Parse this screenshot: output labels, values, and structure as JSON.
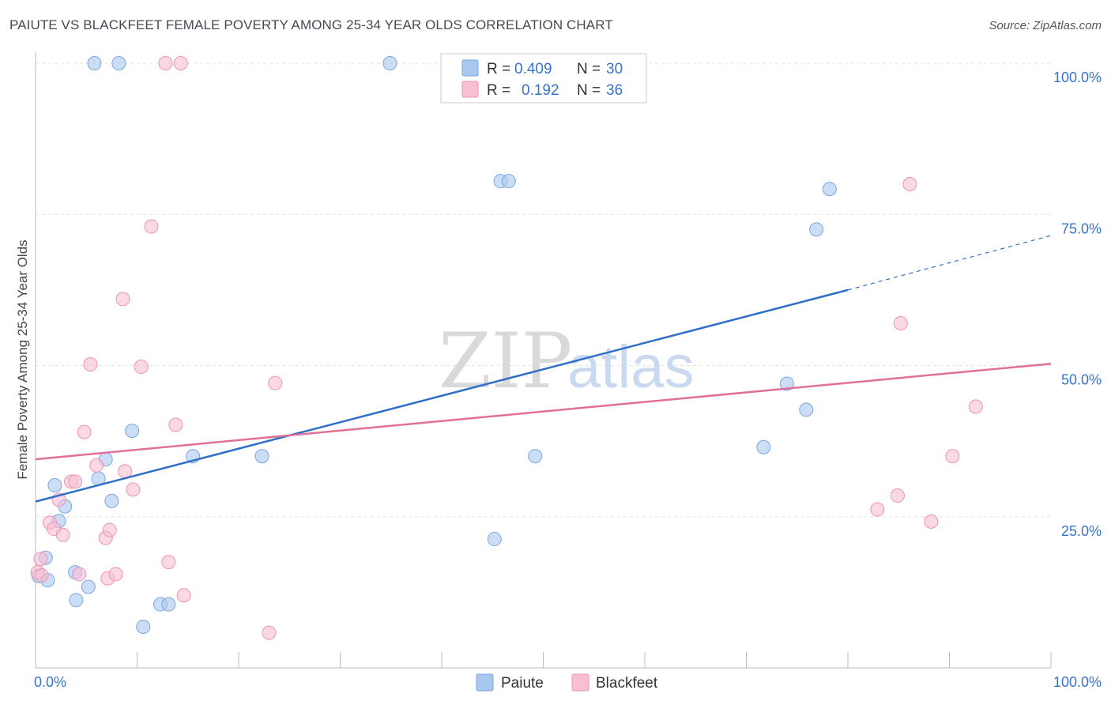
{
  "header": {
    "title": "PAIUTE VS BLACKFEET FEMALE POVERTY AMONG 25-34 YEAR OLDS CORRELATION CHART",
    "source": "Source: ZipAtlas.com"
  },
  "watermark": {
    "zip": "ZIP",
    "atlas": "atlas"
  },
  "legend": {
    "rows": [
      {
        "r_label": "R = ",
        "r_value": "0.409",
        "n_label": "N = ",
        "n_value": "30"
      },
      {
        "r_label": "R = ",
        "r_value": "0.192",
        "n_label": "N = ",
        "n_value": "36"
      }
    ]
  },
  "chart_data": {
    "type": "scatter",
    "title": "PAIUTE VS BLACKFEET FEMALE POVERTY AMONG 25-34 YEAR OLDS CORRELATION CHART",
    "xlabel": "",
    "ylabel": "Female Poverty Among 25-34 Year Olds",
    "xlim": [
      0,
      100
    ],
    "ylim": [
      0,
      100
    ],
    "x_tick_labels": [
      "0.0%",
      "100.0%"
    ],
    "y_ticks": [
      {
        "value": 100,
        "label": "100.0%"
      },
      {
        "value": 75,
        "label": "75.0%"
      },
      {
        "value": 50,
        "label": "50.0%"
      },
      {
        "value": 25,
        "label": "25.0%"
      }
    ],
    "grid": true,
    "legend_position": "top-center",
    "series": [
      {
        "name": "Paiute",
        "color": "#a8c8f0",
        "stroke": "#7aa6df",
        "line_color": "#2f6fc8",
        "trend": {
          "x0": 0,
          "y0": 27.5,
          "x1": 80,
          "y1": 62.5,
          "dash_x1": 100,
          "dash_y1": 71.5
        },
        "points": [
          [
            5.8,
            100
          ],
          [
            8.2,
            100
          ],
          [
            34.9,
            100
          ],
          [
            45.8,
            80.5
          ],
          [
            46.6,
            80.5
          ],
          [
            78.2,
            79.2
          ],
          [
            76.9,
            72.5
          ],
          [
            0.3,
            15.2
          ],
          [
            1.0,
            18.2
          ],
          [
            1.2,
            14.5
          ],
          [
            1.9,
            30.2
          ],
          [
            2.3,
            24.3
          ],
          [
            2.9,
            26.7
          ],
          [
            3.9,
            15.8
          ],
          [
            4.0,
            11.2
          ],
          [
            5.2,
            13.4
          ],
          [
            6.2,
            31.3
          ],
          [
            6.9,
            34.5
          ],
          [
            7.5,
            27.6
          ],
          [
            9.5,
            39.2
          ],
          [
            12.3,
            10.5
          ],
          [
            13.1,
            10.5
          ],
          [
            15.5,
            35.0
          ],
          [
            22.3,
            35.0
          ],
          [
            45.2,
            21.3
          ],
          [
            49.2,
            35.0
          ],
          [
            71.7,
            36.5
          ],
          [
            74.0,
            47.0
          ],
          [
            75.9,
            42.7
          ],
          [
            10.6,
            6.8
          ]
        ]
      },
      {
        "name": "Blackfeet",
        "color": "#f7c0d2",
        "stroke": "#ee93b1",
        "line_color": "#e07098",
        "trend": {
          "x0": 0,
          "y0": 34.5,
          "x1": 100,
          "y1": 50.3
        },
        "points": [
          [
            12.8,
            100
          ],
          [
            14.3,
            100
          ],
          [
            11.4,
            73.0
          ],
          [
            8.6,
            61.0
          ],
          [
            5.4,
            50.2
          ],
          [
            10.4,
            49.8
          ],
          [
            23.6,
            47.1
          ],
          [
            13.8,
            40.2
          ],
          [
            4.8,
            39.0
          ],
          [
            6.0,
            33.5
          ],
          [
            8.8,
            32.5
          ],
          [
            3.5,
            30.8
          ],
          [
            3.9,
            30.8
          ],
          [
            9.6,
            29.5
          ],
          [
            2.3,
            27.8
          ],
          [
            1.4,
            24.0
          ],
          [
            1.8,
            23.0
          ],
          [
            2.7,
            22.0
          ],
          [
            6.9,
            21.5
          ],
          [
            7.3,
            22.8
          ],
          [
            0.5,
            18.0
          ],
          [
            0.2,
            15.8
          ],
          [
            4.3,
            15.5
          ],
          [
            7.1,
            14.8
          ],
          [
            7.9,
            15.5
          ],
          [
            13.1,
            17.5
          ],
          [
            14.6,
            12.0
          ],
          [
            23.0,
            5.8
          ],
          [
            86.1,
            80.0
          ],
          [
            85.2,
            57.0
          ],
          [
            92.6,
            43.2
          ],
          [
            90.3,
            35.0
          ],
          [
            84.9,
            28.5
          ],
          [
            82.9,
            26.2
          ],
          [
            88.2,
            24.2
          ],
          [
            0.6,
            15.3
          ]
        ]
      }
    ]
  }
}
